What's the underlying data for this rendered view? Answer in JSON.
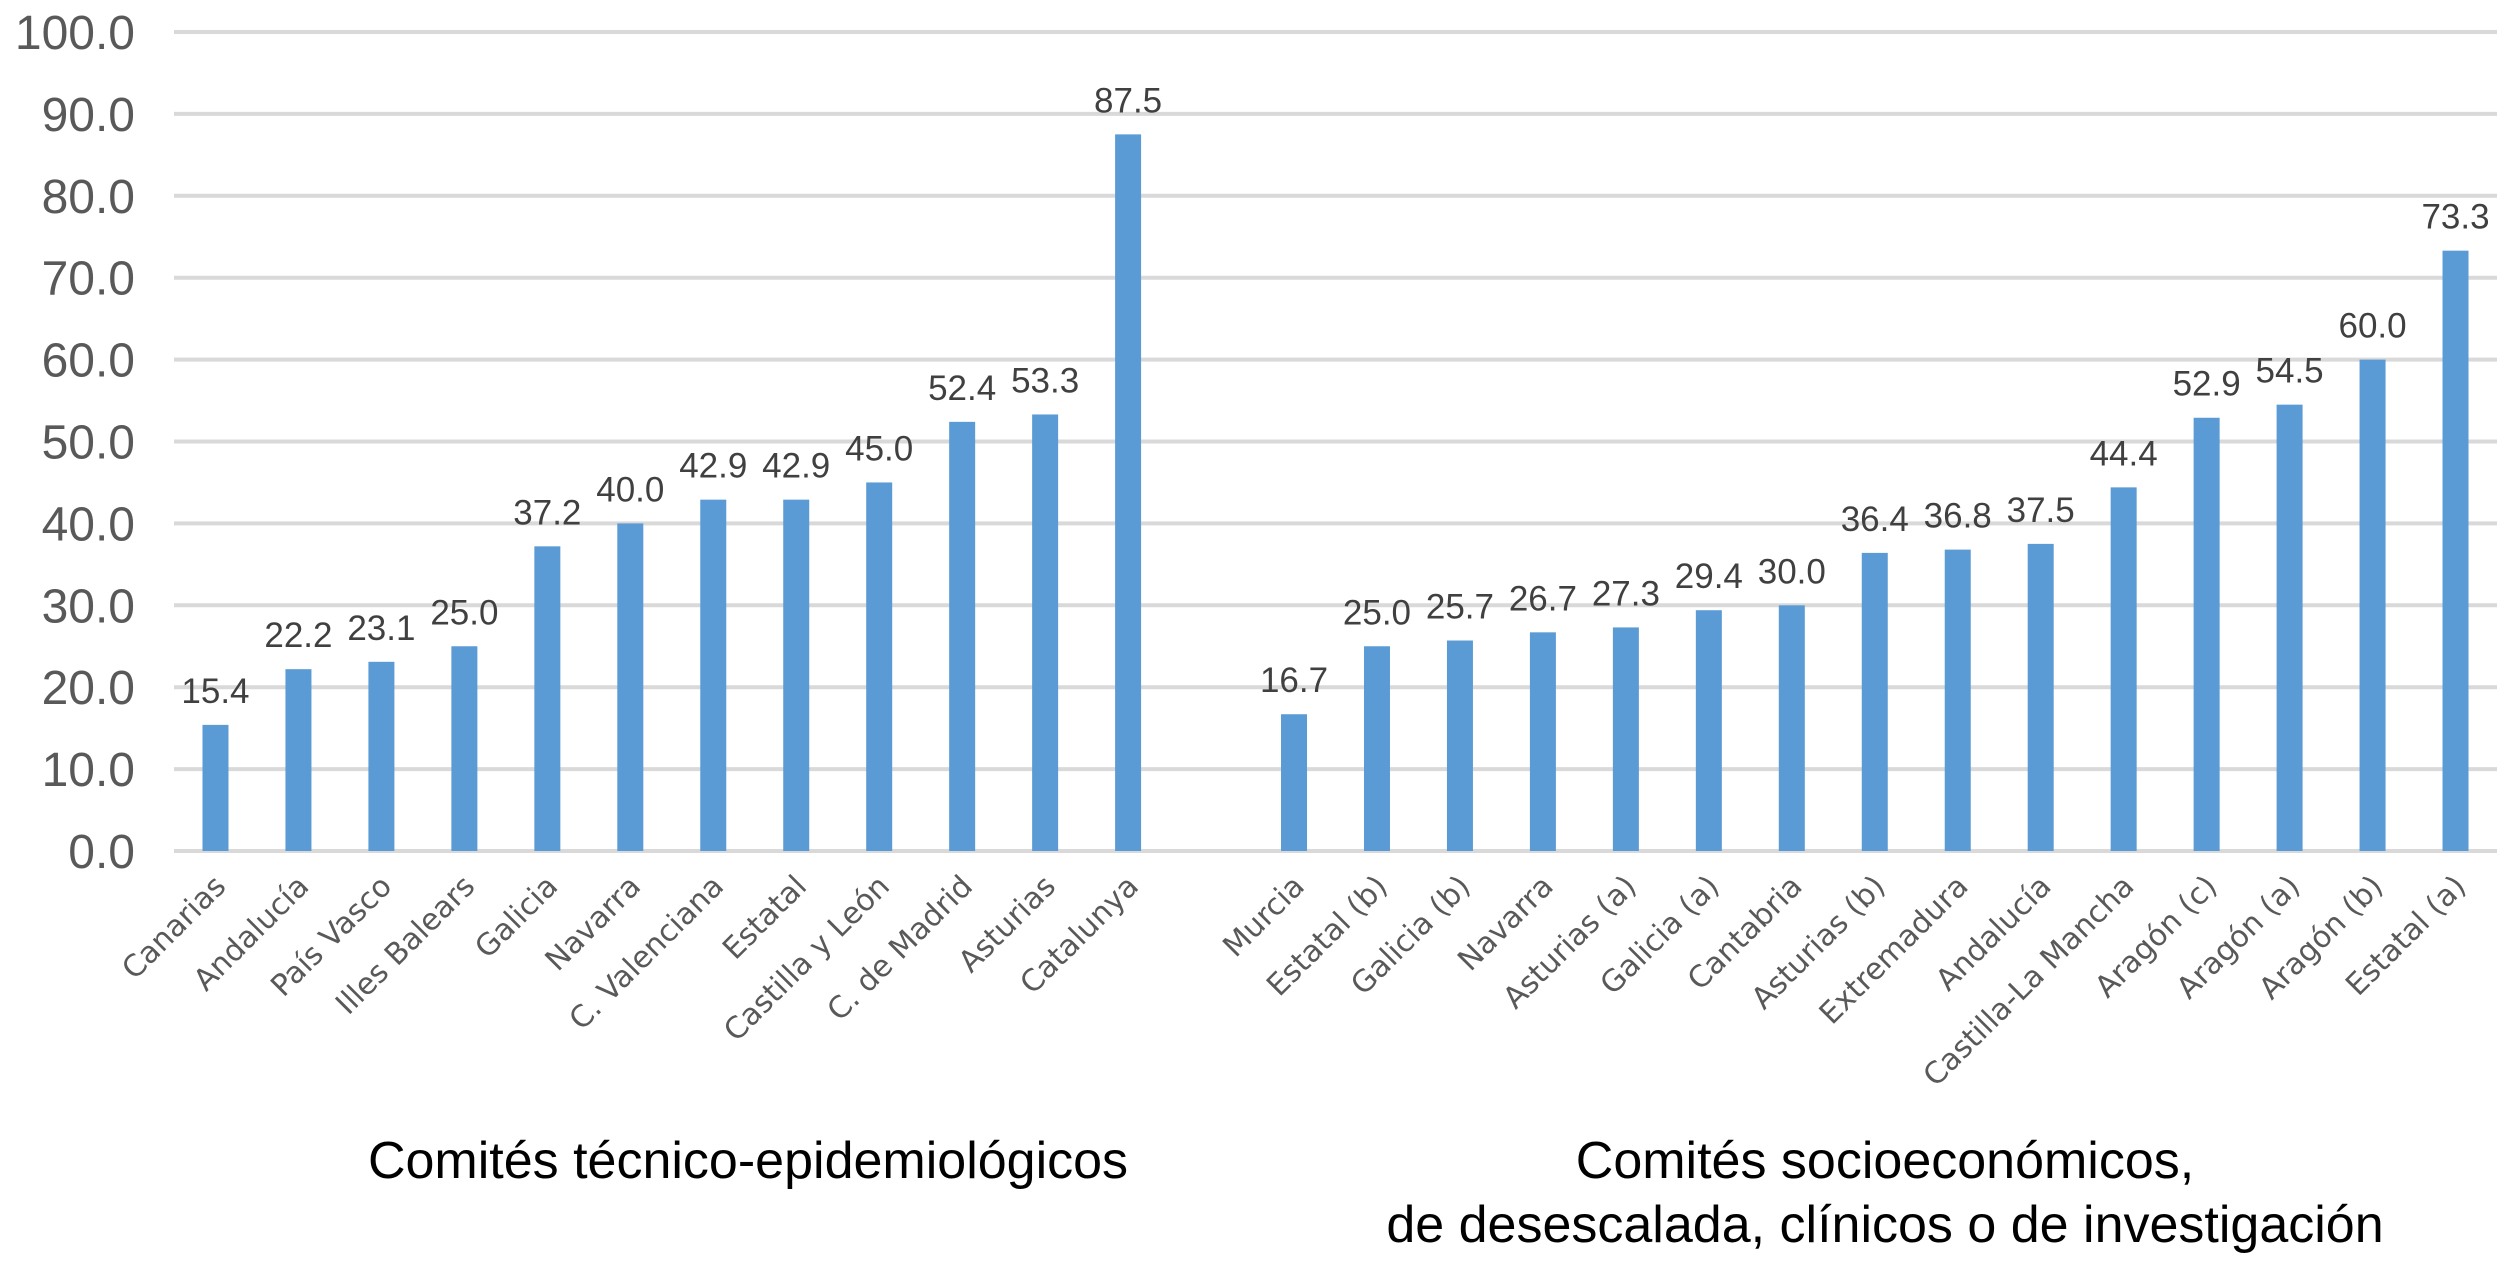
{
  "chart_data": {
    "type": "bar",
    "title": "",
    "xlabel": "",
    "ylabel": "",
    "ylim": [
      0,
      100
    ],
    "yticks": [
      "0.0",
      "10.0",
      "20.0",
      "30.0",
      "40.0",
      "50.0",
      "60.0",
      "70.0",
      "80.0",
      "90.0",
      "100.0"
    ],
    "grid": true,
    "legend": "none",
    "bar_color": "#5B9BD5",
    "groups": [
      {
        "title_lines": [
          "Comités técnico-epidemiológicos"
        ],
        "categories": [
          "Canarias",
          "Andalucía",
          "País Vasco",
          "Illes Balears",
          "Galicia",
          "Navarra",
          "C. Valenciana",
          "Estatal",
          "Castilla y León",
          "C. de Madrid",
          "Asturias",
          "Catalunya"
        ],
        "values": [
          15.4,
          22.2,
          23.1,
          25.0,
          37.2,
          40.0,
          42.9,
          42.9,
          45.0,
          52.4,
          53.3,
          87.5
        ],
        "labels": [
          "15.4",
          "22.2",
          "23.1",
          "25.0",
          "37.2",
          "40.0",
          "42.9",
          "42.9",
          "45.0",
          "52.4",
          "53.3",
          "87.5"
        ]
      },
      {
        "title_lines": [
          "Comités socioeconómicos,",
          "de desescalada, clínicos o de investigación"
        ],
        "categories": [
          "Murcia",
          "Estatal (b)",
          "Galicia (b)",
          "Navarra",
          "Asturias (a)",
          "Galicia (a)",
          "Cantabria",
          "Asturias (b)",
          "Extremadura",
          "Andalucía",
          "Castilla-La Mancha",
          "Aragón (c)",
          "Aragón (a)",
          "Aragón (b)",
          "Estatal (a)"
        ],
        "values": [
          16.7,
          25.0,
          25.7,
          26.7,
          27.3,
          29.4,
          30.0,
          36.4,
          36.8,
          37.5,
          44.4,
          52.9,
          54.5,
          60.0,
          73.3
        ],
        "labels": [
          "16.7",
          "25.0",
          "25.7",
          "26.7",
          "27.3",
          "29.4",
          "30.0",
          "36.4",
          "36.8",
          "37.5",
          "44.4",
          "52.9",
          "54.5",
          "60.0",
          "73.3"
        ]
      }
    ]
  }
}
